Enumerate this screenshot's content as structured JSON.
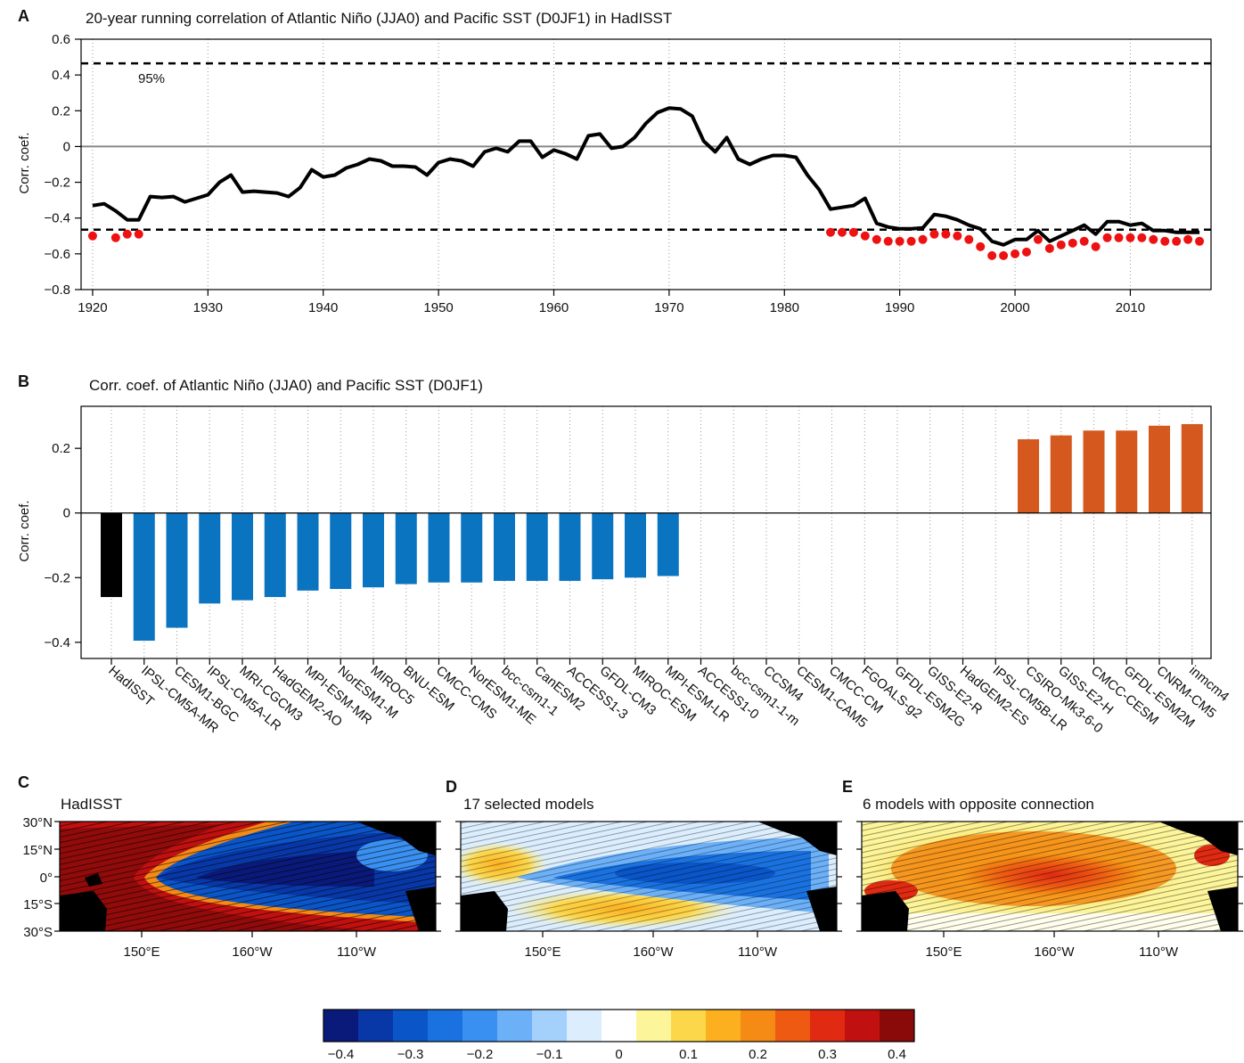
{
  "colors": {
    "series_line": "#000000",
    "zero_line": "#888888",
    "significant_dot": "#ee1111",
    "bar_observed": "#000000",
    "bar_negative": "#0b74c0",
    "bar_positive": "#d5581e"
  },
  "panels": {
    "A": {
      "letter": "A",
      "title": "20-year running correlation of Atlantic Niño (JJA0) and Pacific SST (D0JF1) in HadISST",
      "ylabel": "Corr. coef.",
      "annotation": "95%"
    },
    "B": {
      "letter": "B",
      "title": "Corr. coef. of Atlantic Niño (JJA0) and Pacific SST (D0JF1)",
      "ylabel": "Corr. coef."
    },
    "C": {
      "letter": "C",
      "title": "HadISST"
    },
    "D": {
      "letter": "D",
      "title": "17 selected models"
    },
    "E": {
      "letter": "E",
      "title": "6 models with opposite connection"
    }
  },
  "map_axes": {
    "lat_ticks": [
      "30°N",
      "15°N",
      "0°",
      "15°S",
      "30°S"
    ],
    "lon_ticks": [
      "150°E",
      "160°W",
      "110°W"
    ]
  },
  "colorbar": {
    "colors": [
      "#0a1a7a",
      "#0838a8",
      "#0a55c8",
      "#1a72e0",
      "#3a90f0",
      "#6cb0f8",
      "#a4d0fc",
      "#dceefe",
      "#ffffff",
      "#fdf59a",
      "#fcd74a",
      "#fcb020",
      "#f58a14",
      "#ee5a12",
      "#e02a12",
      "#c01010",
      "#8a0a0a"
    ],
    "tick_labels": [
      "−0.4",
      "−0.3",
      "−0.2",
      "−0.1",
      "0",
      "0.1",
      "0.2",
      "0.3",
      "0.4"
    ]
  },
  "chart_data": [
    {
      "type": "line",
      "panel": "A",
      "title": "20-year running correlation of Atlantic Niño (JJA0) and Pacific SST (D0JF1) in HadISST",
      "xlabel": "",
      "ylabel": "Corr. coef.",
      "xlim": [
        1919,
        2017
      ],
      "ylim": [
        -0.8,
        0.6
      ],
      "x_ticks": [
        1920,
        1930,
        1940,
        1950,
        1960,
        1970,
        1980,
        1990,
        2000,
        2010
      ],
      "y_ticks": [
        0.6,
        0.4,
        0.2,
        0,
        -0.2,
        -0.4,
        -0.6,
        -0.8
      ],
      "y_tick_labels": [
        "0.6",
        "0.4",
        "0.2",
        "0",
        "−0.2",
        "−0.4",
        "−0.6",
        "−0.8"
      ],
      "grid": "vertical dotted",
      "threshold_95": [
        0.465,
        -0.465
      ],
      "x": [
        1920,
        1921,
        1922,
        1923,
        1924,
        1925,
        1926,
        1927,
        1928,
        1929,
        1930,
        1931,
        1932,
        1933,
        1934,
        1935,
        1936,
        1937,
        1938,
        1939,
        1940,
        1941,
        1942,
        1943,
        1944,
        1945,
        1946,
        1947,
        1948,
        1949,
        1950,
        1951,
        1952,
        1953,
        1954,
        1955,
        1956,
        1957,
        1958,
        1959,
        1960,
        1961,
        1962,
        1963,
        1964,
        1965,
        1966,
        1967,
        1968,
        1969,
        1970,
        1971,
        1972,
        1973,
        1974,
        1975,
        1976,
        1977,
        1978,
        1979,
        1980,
        1981,
        1982,
        1983,
        1984,
        1985,
        1986,
        1987,
        1988,
        1989,
        1990,
        1991,
        1992,
        1993,
        1994,
        1995,
        1996,
        1997,
        1998,
        1999,
        2000,
        2001,
        2002,
        2003,
        2004,
        2005,
        2006,
        2007,
        2008,
        2009,
        2010,
        2011,
        2012,
        2013,
        2014,
        2015,
        2016
      ],
      "y": [
        -0.33,
        -0.32,
        -0.36,
        -0.41,
        -0.41,
        -0.28,
        -0.285,
        -0.28,
        -0.31,
        -0.29,
        -0.27,
        -0.2,
        -0.16,
        -0.255,
        -0.25,
        -0.255,
        -0.26,
        -0.28,
        -0.23,
        -0.13,
        -0.17,
        -0.16,
        -0.12,
        -0.1,
        -0.07,
        -0.08,
        -0.11,
        -0.11,
        -0.115,
        -0.16,
        -0.09,
        -0.07,
        -0.08,
        -0.11,
        -0.03,
        -0.01,
        -0.03,
        0.03,
        0.03,
        -0.06,
        -0.02,
        -0.04,
        -0.07,
        0.06,
        0.07,
        -0.01,
        0.0,
        0.05,
        0.13,
        0.19,
        0.215,
        0.21,
        0.17,
        0.03,
        -0.03,
        0.05,
        -0.07,
        -0.1,
        -0.07,
        -0.05,
        -0.05,
        -0.06,
        -0.16,
        -0.24,
        -0.35,
        -0.34,
        -0.33,
        -0.29,
        -0.43,
        -0.45,
        -0.46,
        -0.46,
        -0.455,
        -0.38,
        -0.39,
        -0.41,
        -0.44,
        -0.46,
        -0.53,
        -0.55,
        -0.52,
        -0.52,
        -0.47,
        -0.53,
        -0.5,
        -0.47,
        -0.44,
        -0.49,
        -0.42,
        -0.42,
        -0.44,
        -0.43,
        -0.47,
        -0.47,
        -0.48,
        -0.48,
        -0.48
      ],
      "significant_points": {
        "x": [
          1920,
          1922,
          1923,
          1924,
          1984,
          1985,
          1986,
          1987,
          1988,
          1989,
          1990,
          1991,
          1992,
          1993,
          1994,
          1995,
          1996,
          1997,
          1998,
          1999,
          2000,
          2001,
          2002,
          2003,
          2004,
          2005,
          2006,
          2007,
          2008,
          2009,
          2010,
          2011,
          2012,
          2013,
          2014,
          2015,
          2016
        ],
        "y": [
          -0.5,
          -0.51,
          -0.49,
          -0.49,
          -0.48,
          -0.48,
          -0.48,
          -0.5,
          -0.52,
          -0.53,
          -0.53,
          -0.53,
          -0.52,
          -0.49,
          -0.49,
          -0.5,
          -0.52,
          -0.56,
          -0.61,
          -0.61,
          -0.6,
          -0.59,
          -0.52,
          -0.57,
          -0.55,
          -0.54,
          -0.53,
          -0.56,
          -0.51,
          -0.51,
          -0.51,
          -0.51,
          -0.52,
          -0.53,
          -0.53,
          -0.52,
          -0.53
        ]
      }
    },
    {
      "type": "bar",
      "panel": "B",
      "title": "Corr. coef. of Atlantic Niño (JJA0) and Pacific SST (D0JF1)",
      "xlabel": "",
      "ylabel": "Corr. coef.",
      "ylim": [
        -0.45,
        0.33
      ],
      "y_ticks": [
        0.2,
        0,
        -0.2,
        -0.4
      ],
      "y_tick_labels": [
        "0.2",
        "0",
        "−0.2",
        "−0.4"
      ],
      "grid": "vertical dotted",
      "categories": [
        "HadISST",
        "IPSL-CM5A-MR",
        "CESM1-BGC",
        "IPSL-CM5A-LR",
        "MRI-CGCM3",
        "HadGEM2-AO",
        "MPI-ESM-MR",
        "NorESM1-M",
        "MIROC5",
        "BNU-ESM",
        "CMCC-CMS",
        "NorESM1-ME",
        "bcc-csm1-1",
        "CanESM2",
        "ACCESS1-3",
        "GFDL-CM3",
        "MIROC-ESM",
        "MPI-ESM-LR",
        "ACCESS1-0",
        "bcc-csm1-1-m",
        "CCSM4",
        "CESM1-CAM5",
        "CMCC-CM",
        "FGOALS-g2",
        "GFDL-ESM2G",
        "GISS-E2-R",
        "HadGEM2-ES",
        "IPSL-CM5B-LR",
        "CSIRO-Mk3-6-0",
        "GISS-E2-H",
        "CMCC-CESM",
        "GFDL-ESM2M",
        "CNRM-CM5",
        "inmcm4"
      ],
      "values": [
        -0.26,
        -0.395,
        -0.355,
        -0.28,
        -0.27,
        -0.26,
        -0.24,
        -0.235,
        -0.23,
        -0.22,
        -0.215,
        -0.215,
        -0.21,
        -0.21,
        -0.21,
        -0.205,
        -0.2,
        -0.195,
        null,
        null,
        null,
        null,
        null,
        null,
        null,
        null,
        null,
        null,
        0.228,
        0.24,
        0.255,
        0.255,
        0.27,
        0.275
      ],
      "groups": [
        "observed",
        "negative",
        "negative",
        "negative",
        "negative",
        "negative",
        "negative",
        "negative",
        "negative",
        "negative",
        "negative",
        "negative",
        "negative",
        "negative",
        "negative",
        "negative",
        "negative",
        "negative",
        "none",
        "none",
        "none",
        "none",
        "none",
        "none",
        "none",
        "none",
        "none",
        "none",
        "positive",
        "positive",
        "positive",
        "positive",
        "positive",
        "positive"
      ]
    }
  ]
}
